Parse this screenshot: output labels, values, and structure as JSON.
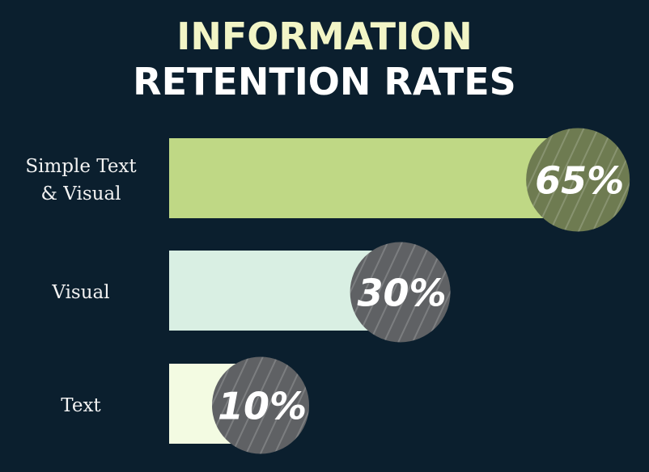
{
  "chart_data": {
    "type": "bar",
    "orientation": "horizontal",
    "title_line1": "INFORMATION",
    "title_line2": "RETENTION RATES",
    "categories": [
      "Simple Text\n& Visual",
      "Visual",
      "Text"
    ],
    "values": [
      65,
      30,
      10
    ],
    "data_labels": [
      "65%",
      "30%",
      "10%"
    ],
    "bar_colors": [
      "#bfd885",
      "#d9efe3",
      "#f3fbe2"
    ],
    "badge_colors": [
      "#6e7b51",
      "#5f6164",
      "#5f6164"
    ],
    "background": "#0b1f2e",
    "grid": false,
    "axes_visible": false
  }
}
